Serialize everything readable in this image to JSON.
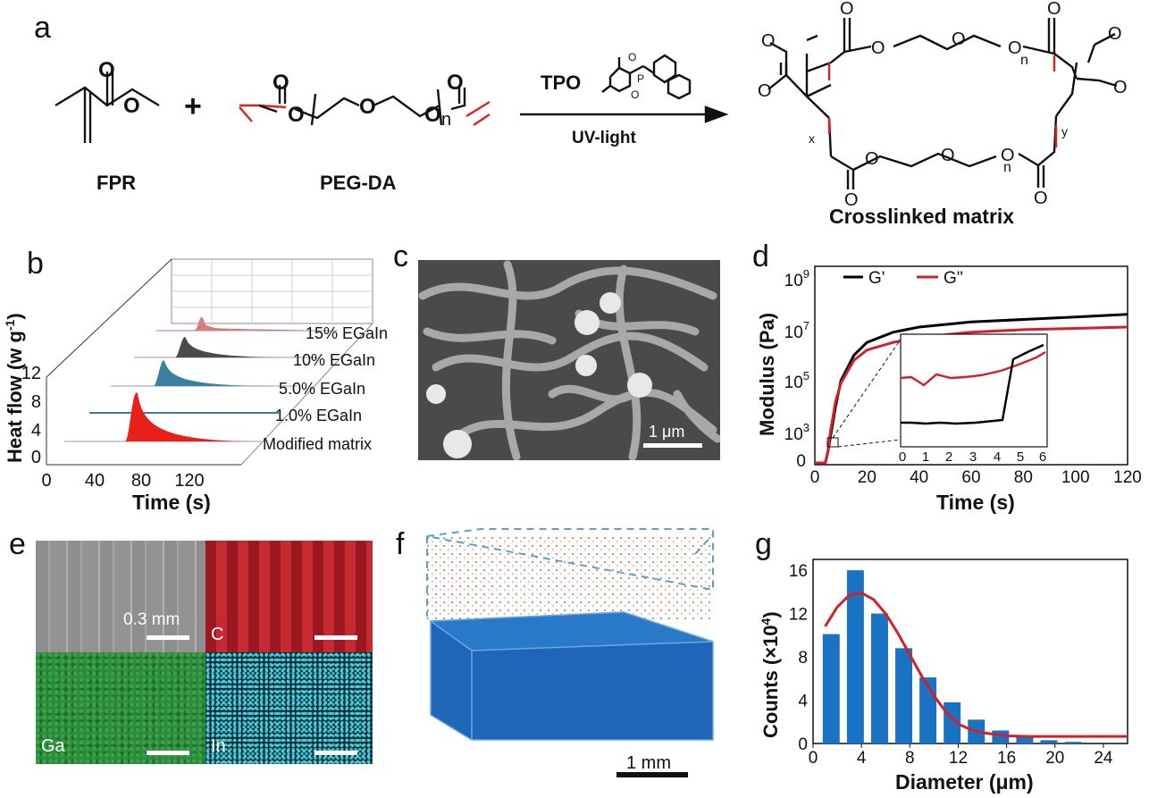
{
  "panel_labels": {
    "a": "a",
    "b": "b",
    "c": "c",
    "d": "d",
    "e": "e",
    "f": "f",
    "g": "g"
  },
  "panel_a": {
    "reactant1": "FPR",
    "reactant2": "PEG-DA",
    "plus": "+",
    "catalyst": "TPO",
    "condition": "UV-light",
    "product": "Crosslinked matrix",
    "atom_O": "O",
    "sub_n": "n",
    "sub_x": "x",
    "sub_y": "y",
    "sub_P": "P",
    "colors": {
      "acrylate": "#e02020",
      "bond": "#111111"
    }
  },
  "panel_b": {
    "ylabel": "Heat flow (w g",
    "ylabel_sup": "-1",
    "ylabel_end": ")",
    "xlabel": "Time (s)",
    "yticks": [
      "0",
      "4",
      "8",
      "12"
    ],
    "xticks": [
      "0",
      "40",
      "80",
      "120"
    ],
    "series_labels": [
      "15% EGaIn",
      "10% EGaIn",
      "5.0% EGaIn",
      "1.0% EGaIn",
      "Modified matrix"
    ],
    "colors": [
      "#d98080",
      "#4a4a4a",
      "#3d7fa0",
      "#3d7fa0",
      "#e8201a"
    ]
  },
  "panel_c": {
    "scale_text": "1 μm"
  },
  "panel_d": {
    "ylabel": "Modulus (Pa)",
    "xlabel": "Time (s)",
    "xticks": [
      "0",
      "20",
      "40",
      "60",
      "80",
      "100",
      "120"
    ],
    "yticks": [
      {
        "base": "10",
        "exp": "9"
      },
      {
        "base": "10",
        "exp": "7"
      },
      {
        "base": "10",
        "exp": "5"
      },
      {
        "base": "10",
        "exp": "3"
      },
      {
        "base": "0",
        "exp": ""
      }
    ],
    "legend": [
      "G'",
      "G''"
    ],
    "inset_xticks": [
      "0",
      "1",
      "2",
      "3",
      "4",
      "5",
      "6"
    ],
    "colors": {
      "G_prime": "#000000",
      "G_dprime": "#d0202a"
    }
  },
  "panel_e": {
    "scale_text": "0.3 mm",
    "tiles": [
      "C",
      "Ga",
      "In"
    ],
    "colors": {
      "sem": "#9a9a9a",
      "C": "#b01c24",
      "Ga": "#2c8a3c",
      "In": "#2aa8b8"
    }
  },
  "panel_f": {
    "scale_text": "1 mm"
  },
  "panel_g": {
    "ylabel": "Counts (×10",
    "ylabel_sup": "4",
    "ylabel_end": ")",
    "xlabel": "Diameter (μm)",
    "xticks": [
      "0",
      "4",
      "8",
      "12",
      "16",
      "20",
      "24"
    ],
    "yticks": [
      "0",
      "4",
      "8",
      "12",
      "16"
    ]
  },
  "chart_data": [
    {
      "type": "bar",
      "panel": "g",
      "xlabel": "Diameter (μm)",
      "ylabel": "Counts (×10^4)",
      "xlim": [
        0,
        26
      ],
      "ylim": [
        0,
        17
      ],
      "categories": [
        1.5,
        3.5,
        5.5,
        7.5,
        9.5,
        11.5,
        13.5,
        15.5,
        17.5,
        19.5,
        21.5
      ],
      "values": [
        10.1,
        16.0,
        12.0,
        8.8,
        6.1,
        3.8,
        2.2,
        1.2,
        0.6,
        0.3,
        0.15
      ],
      "fit_curve": {
        "x": [
          1,
          2,
          3,
          4,
          5,
          6,
          7,
          8,
          9,
          10,
          11,
          12,
          13,
          14,
          16,
          18,
          20,
          22,
          24,
          26
        ],
        "y": [
          10.8,
          12.6,
          13.7,
          13.9,
          13.3,
          12.0,
          10.2,
          8.2,
          6.2,
          4.4,
          2.9,
          1.8,
          1.3,
          1.0,
          0.7,
          0.65,
          0.65,
          0.65,
          0.65,
          0.65
        ]
      },
      "colors": {
        "bar": "#1a72c2",
        "fit": "#d0202a"
      }
    },
    {
      "type": "line",
      "panel": "d",
      "xlabel": "Time (s)",
      "ylabel": "Modulus (Pa)",
      "xlim": [
        0,
        120
      ],
      "series": [
        {
          "name": "G'",
          "x": [
            0,
            4,
            5,
            6,
            8,
            10,
            15,
            20,
            30,
            40,
            60,
            80,
            100,
            120
          ],
          "log10_y": [
            0,
            0,
            2.8,
            3.4,
            4.6,
            5.6,
            6.6,
            7.1,
            7.5,
            7.7,
            7.9,
            8.0,
            8.1,
            8.2
          ]
        },
        {
          "name": "G''",
          "x": [
            0,
            4,
            5,
            6,
            8,
            10,
            15,
            20,
            30,
            40,
            60,
            80,
            100,
            120
          ],
          "log10_y": [
            0,
            0,
            2.8,
            3.6,
            4.8,
            5.5,
            6.4,
            6.8,
            7.1,
            7.3,
            7.5,
            7.6,
            7.65,
            7.7
          ]
        }
      ]
    }
  ]
}
